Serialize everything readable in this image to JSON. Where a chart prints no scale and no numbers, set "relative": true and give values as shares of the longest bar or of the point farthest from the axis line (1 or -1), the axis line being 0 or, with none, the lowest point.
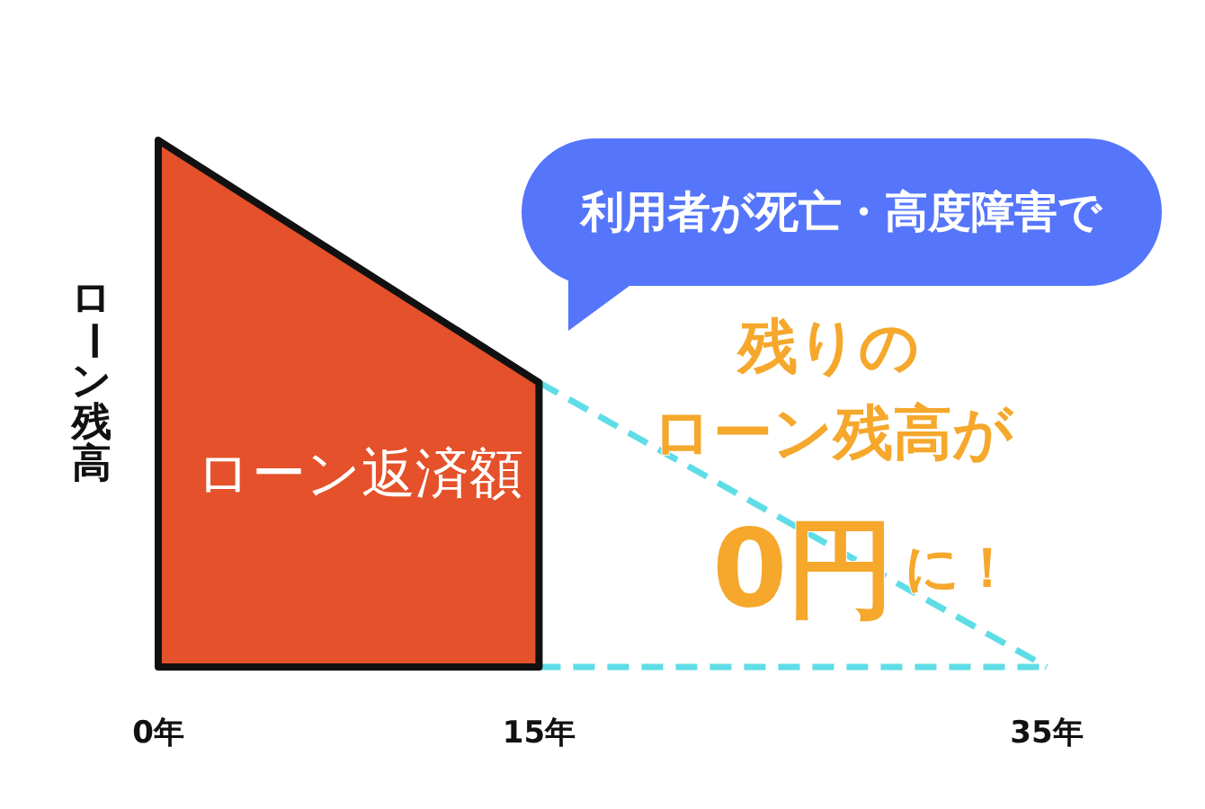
{
  "chart_data": {
    "type": "area",
    "relative": true,
    "ylabel": "ローン残高",
    "xlim": [
      0,
      35
    ],
    "xticks": [
      {
        "value": 0,
        "label": "0年"
      },
      {
        "value": 15,
        "label": "15年"
      },
      {
        "value": 35,
        "label": "35年"
      }
    ],
    "line_style": "dashed",
    "series": [
      {
        "name": "ローン返済額",
        "color": "#e4512a",
        "x": [
          0,
          15
        ],
        "values": [
          1,
          0.54
        ]
      },
      {
        "type": "line",
        "color": "#5fdde6",
        "x": [
          15,
          35
        ],
        "values": [
          0.54,
          0
        ]
      },
      {
        "type": "line",
        "color": "#5fdde6",
        "x": [
          15,
          35
        ],
        "values": [
          0,
          0
        ]
      }
    ],
    "annotations": [
      "利用者が死亡・高度障害で",
      "残りの",
      "ローン残高が",
      "0円",
      "に！"
    ]
  }
}
